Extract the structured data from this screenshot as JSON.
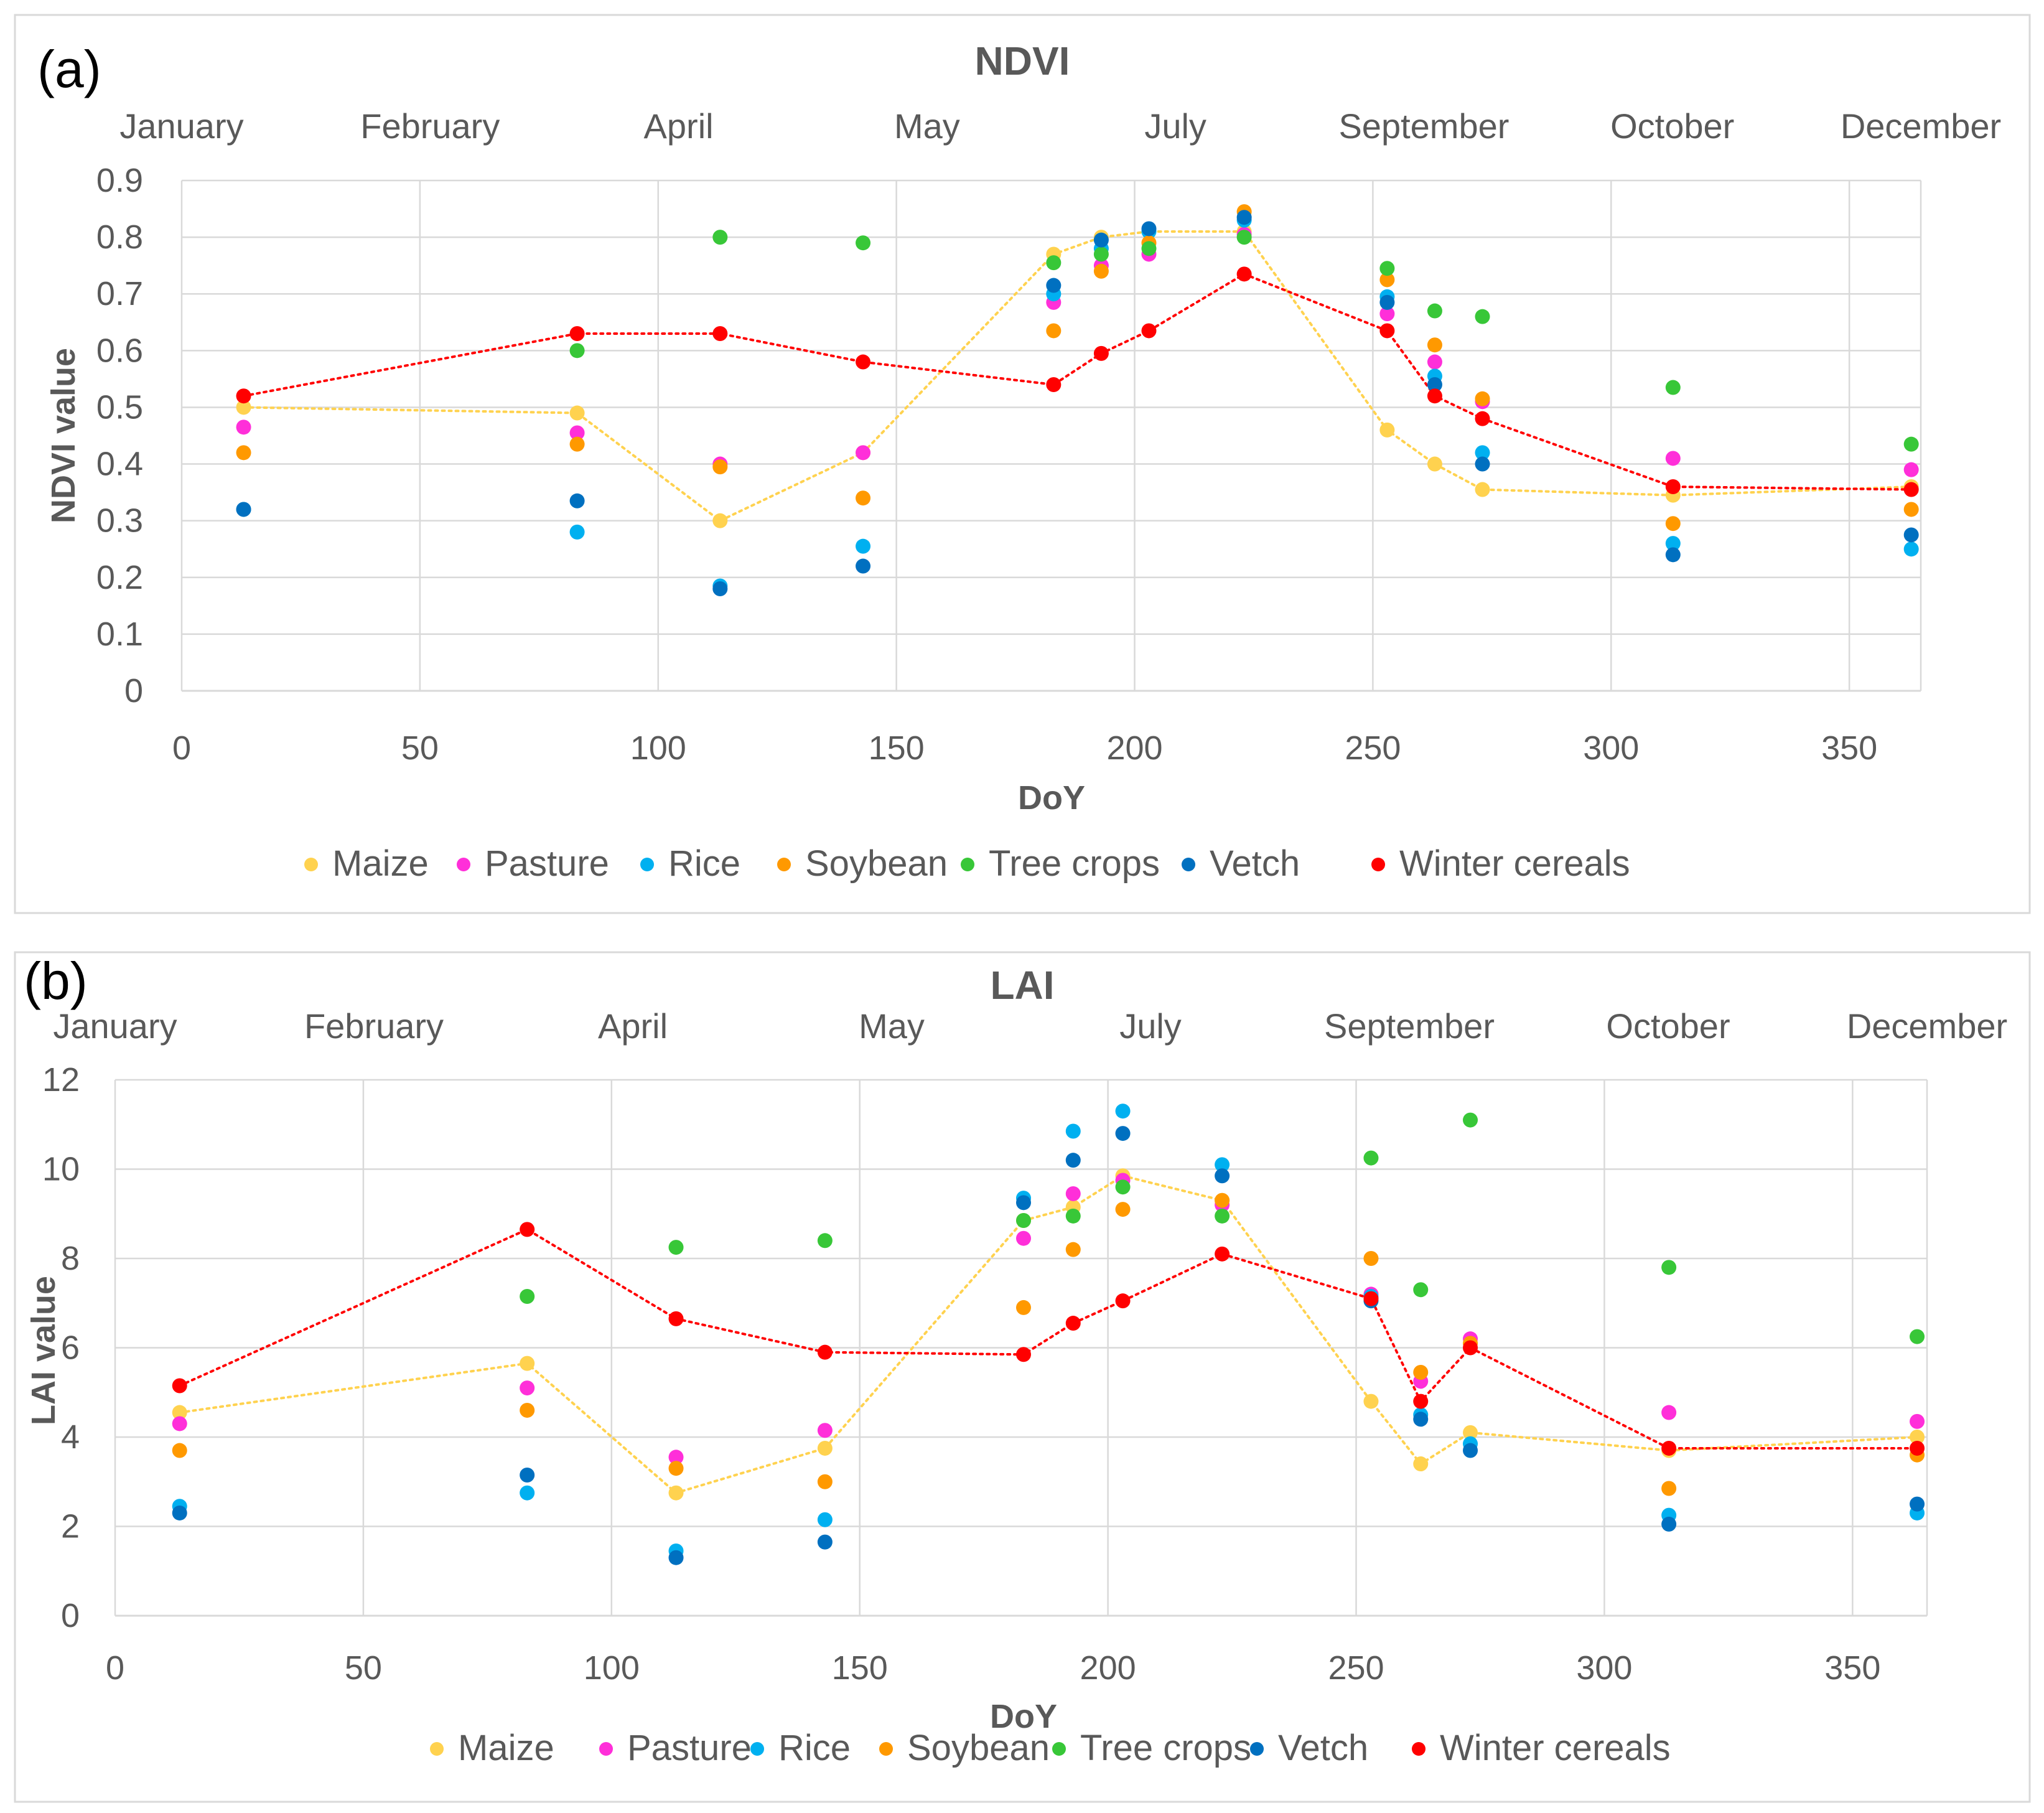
{
  "colors": {
    "Maize": "#FFD24F",
    "Pasture": "#FF2FD9",
    "Rice": "#00B0F0",
    "Soybean": "#FF9900",
    "Tree crops": "#38C738",
    "Vetch": "#0070C0",
    "Winter cereals": "#FF0000"
  },
  "chart_data": [
    {
      "type": "scatter",
      "panel_label": "(a)",
      "title": "NDVI",
      "xlabel": "DoY",
      "ylabel": "NDVI value",
      "xlim": [
        0,
        365
      ],
      "ylim": [
        0,
        0.9
      ],
      "x_ticks": [
        0,
        50,
        100,
        150,
        200,
        250,
        300,
        350
      ],
      "y_ticks": [
        0,
        0.1,
        0.2,
        0.3,
        0.4,
        0.5,
        0.6,
        0.7,
        0.8,
        0.9
      ],
      "y_tick_labels": [
        "0",
        "0.1",
        "0.2",
        "0.3",
        "0.4",
        "0.5",
        "0.6",
        "0.7",
        "0.8",
        "0.9"
      ],
      "grid": true,
      "months": [
        "January",
        "February",
        "April",
        "May",
        "July",
        "September",
        "October",
        "December"
      ],
      "legend_position": "bottom",
      "x": [
        13,
        83,
        113,
        143,
        183,
        193,
        203,
        223,
        253,
        263,
        273,
        313,
        363
      ],
      "series": [
        {
          "name": "Maize",
          "line": true,
          "values": [
            0.5,
            0.49,
            0.3,
            0.42,
            0.77,
            0.8,
            0.81,
            0.81,
            0.46,
            0.4,
            0.355,
            0.345,
            0.36
          ]
        },
        {
          "name": "Pasture",
          "line": false,
          "values": [
            0.465,
            0.455,
            0.4,
            0.42,
            0.685,
            0.75,
            0.77,
            0.805,
            0.665,
            0.58,
            0.51,
            0.41,
            0.39
          ]
        },
        {
          "name": "Rice",
          "line": false,
          "values": [
            0.32,
            0.28,
            0.185,
            0.255,
            0.7,
            0.78,
            0.81,
            0.83,
            0.695,
            0.555,
            0.42,
            0.26,
            0.25
          ]
        },
        {
          "name": "Soybean",
          "line": false,
          "values": [
            0.42,
            0.435,
            0.395,
            0.34,
            0.635,
            0.74,
            0.79,
            0.845,
            0.725,
            0.61,
            0.515,
            0.295,
            0.32
          ]
        },
        {
          "name": "Tree crops",
          "line": false,
          "values": [
            null,
            0.6,
            0.8,
            0.79,
            0.755,
            0.77,
            0.78,
            0.8,
            0.745,
            0.67,
            0.66,
            0.535,
            0.435
          ]
        },
        {
          "name": "Vetch",
          "line": false,
          "values": [
            0.32,
            0.335,
            0.18,
            0.22,
            0.715,
            0.795,
            0.815,
            0.835,
            0.685,
            0.54,
            0.4,
            0.24,
            0.275
          ]
        },
        {
          "name": "Winter cereals",
          "line": true,
          "values": [
            0.52,
            0.63,
            0.63,
            0.58,
            0.54,
            0.595,
            0.635,
            0.735,
            0.635,
            0.52,
            0.48,
            0.36,
            0.355
          ]
        }
      ]
    },
    {
      "type": "scatter",
      "panel_label": "(b)",
      "title": "LAI",
      "xlabel": "DoY",
      "ylabel": "LAI value",
      "xlim": [
        0,
        365
      ],
      "ylim": [
        0,
        12
      ],
      "x_ticks": [
        0,
        50,
        100,
        150,
        200,
        250,
        300,
        350
      ],
      "y_ticks": [
        0,
        2,
        4,
        6,
        8,
        10,
        12
      ],
      "y_tick_labels": [
        "0",
        "2",
        "4",
        "6",
        "8",
        "10",
        "12"
      ],
      "grid": true,
      "months": [
        "January",
        "February",
        "April",
        "May",
        "July",
        "September",
        "October",
        "December"
      ],
      "legend_position": "bottom",
      "x": [
        13,
        83,
        113,
        143,
        183,
        193,
        203,
        223,
        253,
        263,
        273,
        313,
        363
      ],
      "series": [
        {
          "name": "Maize",
          "line": true,
          "values": [
            4.55,
            5.65,
            2.75,
            3.75,
            8.85,
            9.15,
            9.85,
            9.3,
            4.8,
            3.4,
            4.1,
            3.7,
            4.0
          ]
        },
        {
          "name": "Pasture",
          "line": false,
          "values": [
            4.3,
            5.1,
            3.55,
            4.15,
            8.45,
            9.45,
            9.75,
            9.2,
            7.2,
            5.25,
            6.2,
            4.55,
            4.35
          ]
        },
        {
          "name": "Rice",
          "line": false,
          "values": [
            2.45,
            2.75,
            1.45,
            2.15,
            9.35,
            10.85,
            11.3,
            10.1,
            7.15,
            4.5,
            3.85,
            2.25,
            2.3
          ]
        },
        {
          "name": "Soybean",
          "line": false,
          "values": [
            3.7,
            4.6,
            3.3,
            3.0,
            6.9,
            8.2,
            9.1,
            9.3,
            8.0,
            5.45,
            6.1,
            2.85,
            3.6
          ]
        },
        {
          "name": "Tree crops",
          "line": false,
          "values": [
            null,
            7.15,
            8.25,
            8.4,
            8.85,
            8.95,
            9.6,
            8.95,
            10.25,
            7.3,
            11.1,
            7.8,
            6.25
          ]
        },
        {
          "name": "Vetch",
          "line": false,
          "values": [
            2.3,
            3.15,
            1.3,
            1.65,
            9.25,
            10.2,
            10.8,
            9.85,
            7.05,
            4.4,
            3.7,
            2.05,
            2.5
          ]
        },
        {
          "name": "Winter cereals",
          "line": true,
          "values": [
            5.15,
            8.65,
            6.65,
            5.9,
            5.85,
            6.55,
            7.05,
            8.1,
            7.1,
            4.8,
            6.0,
            3.75,
            3.75
          ]
        }
      ]
    }
  ]
}
